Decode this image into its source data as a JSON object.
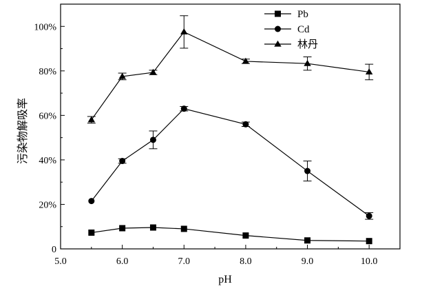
{
  "chart_data": {
    "type": "line",
    "title": "",
    "xlabel": "pH",
    "ylabel": "污染物解吸率",
    "xlim": [
      5.0,
      10.5
    ],
    "ylim": [
      0,
      110
    ],
    "x_ticks": [
      5.0,
      6.0,
      7.0,
      8.0,
      9.0,
      10.0
    ],
    "x_tick_labels": [
      "5.0",
      "6.0",
      "7.0",
      "8.0",
      "9.0",
      "10.0"
    ],
    "y_ticks": [
      0,
      20,
      40,
      60,
      80,
      100
    ],
    "y_tick_labels": [
      "0",
      "20%",
      "40%",
      "60%",
      "80%",
      "100%"
    ],
    "grid": false,
    "legend_position": "top-right",
    "x": [
      5.5,
      6.0,
      6.5,
      7.0,
      8.0,
      9.0,
      10.0
    ],
    "series": [
      {
        "name": "Pb",
        "marker": "square",
        "values": [
          7.3,
          9.3,
          9.6,
          9.0,
          6.0,
          3.8,
          3.5
        ],
        "errors": [
          0,
          0,
          0,
          0,
          0,
          0,
          0
        ]
      },
      {
        "name": "Cd",
        "marker": "circle",
        "values": [
          21.5,
          39.5,
          49.0,
          63.0,
          56.0,
          35.0,
          14.8
        ],
        "errors": [
          0,
          1.0,
          4.0,
          1.0,
          1.0,
          4.5,
          1.5
        ]
      },
      {
        "name": "林丹",
        "marker": "triangle",
        "values": [
          58.0,
          77.5,
          79.3,
          97.5,
          84.3,
          83.3,
          79.5
        ],
        "errors": [
          1.5,
          1.5,
          1.0,
          7.3,
          1.0,
          3.0,
          3.5
        ]
      }
    ]
  }
}
